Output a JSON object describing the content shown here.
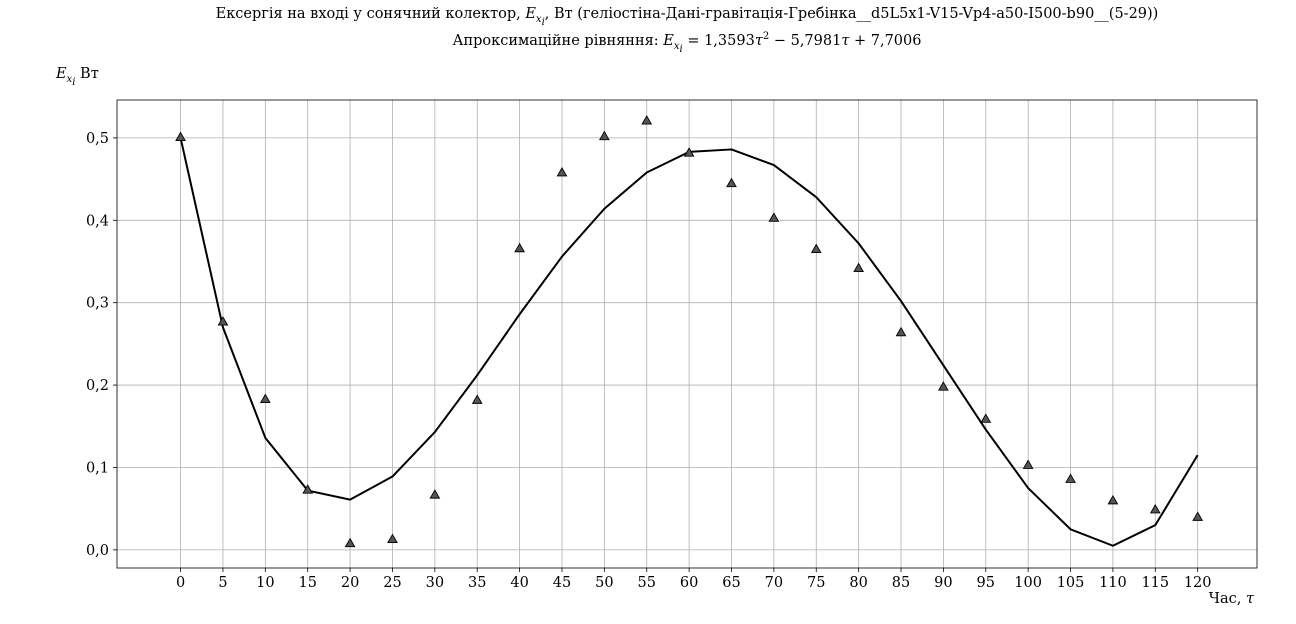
{
  "chart_data": {
    "type": "line",
    "title_parts": {
      "line1_pre": "Ексергія на вході у сонячний колектор, ",
      "var_main": "E",
      "var_sub": "x",
      "var_subsub": "i",
      "line1_post": ", Вт (геліостіна-Дані-гравітація-Гребінка__d5L5x1-V15-Vp4-a50-I500-b90__(5-29))",
      "line2_pre": "Апроксимаційне рівняння: ",
      "line2_eq_a": " = 1,3593",
      "line2_tau": "τ",
      "line2_exp": "2",
      "line2_eq_b": " − 5,7981",
      "line2_tau2": "τ",
      "line2_eq_c": " + 7,7006"
    },
    "ylabel_unit": " Вт",
    "xlabel_text": "Час, ",
    "xlabel_var": "τ",
    "x": [
      0,
      5,
      10,
      15,
      20,
      25,
      30,
      35,
      40,
      45,
      50,
      55,
      60,
      65,
      70,
      75,
      80,
      85,
      90,
      95,
      100,
      105,
      110,
      115,
      120
    ],
    "x_tick_labels": [
      "0",
      "5",
      "10",
      "15",
      "20",
      "25",
      "30",
      "35",
      "40",
      "45",
      "50",
      "55",
      "60",
      "65",
      "70",
      "75",
      "80",
      "85",
      "90",
      "95",
      "100",
      "105",
      "110",
      "115",
      "120"
    ],
    "y_tick_values": [
      0,
      0.1,
      0.2,
      0.3,
      0.4,
      0.5
    ],
    "y_tick_labels": [
      "0,0",
      "0,1",
      "0,2",
      "0,3",
      "0,4",
      "0,5"
    ],
    "xlim": [
      -7.5,
      127
    ],
    "ylim": [
      -0.022,
      0.546
    ],
    "grid": true,
    "series": [
      {
        "kind": "line",
        "color": "#000000",
        "values": [
          0.5,
          0.27,
          0.136,
          0.072,
          0.061,
          0.089,
          0.143,
          0.212,
          0.286,
          0.356,
          0.414,
          0.458,
          0.483,
          0.486,
          0.467,
          0.428,
          0.372,
          0.302,
          0.224,
          0.146,
          0.075,
          0.025,
          0.005,
          0.03,
          0.115
        ]
      },
      {
        "kind": "scatter",
        "marker": "triangle",
        "color": "#555555",
        "values": [
          0.501,
          0.277,
          0.183,
          0.073,
          0.008,
          0.013,
          0.067,
          0.182,
          0.366,
          0.458,
          0.502,
          0.521,
          0.482,
          0.445,
          0.403,
          0.365,
          0.342,
          0.264,
          0.198,
          0.159,
          0.103,
          0.086,
          0.06,
          0.049,
          0.04
        ]
      }
    ]
  }
}
